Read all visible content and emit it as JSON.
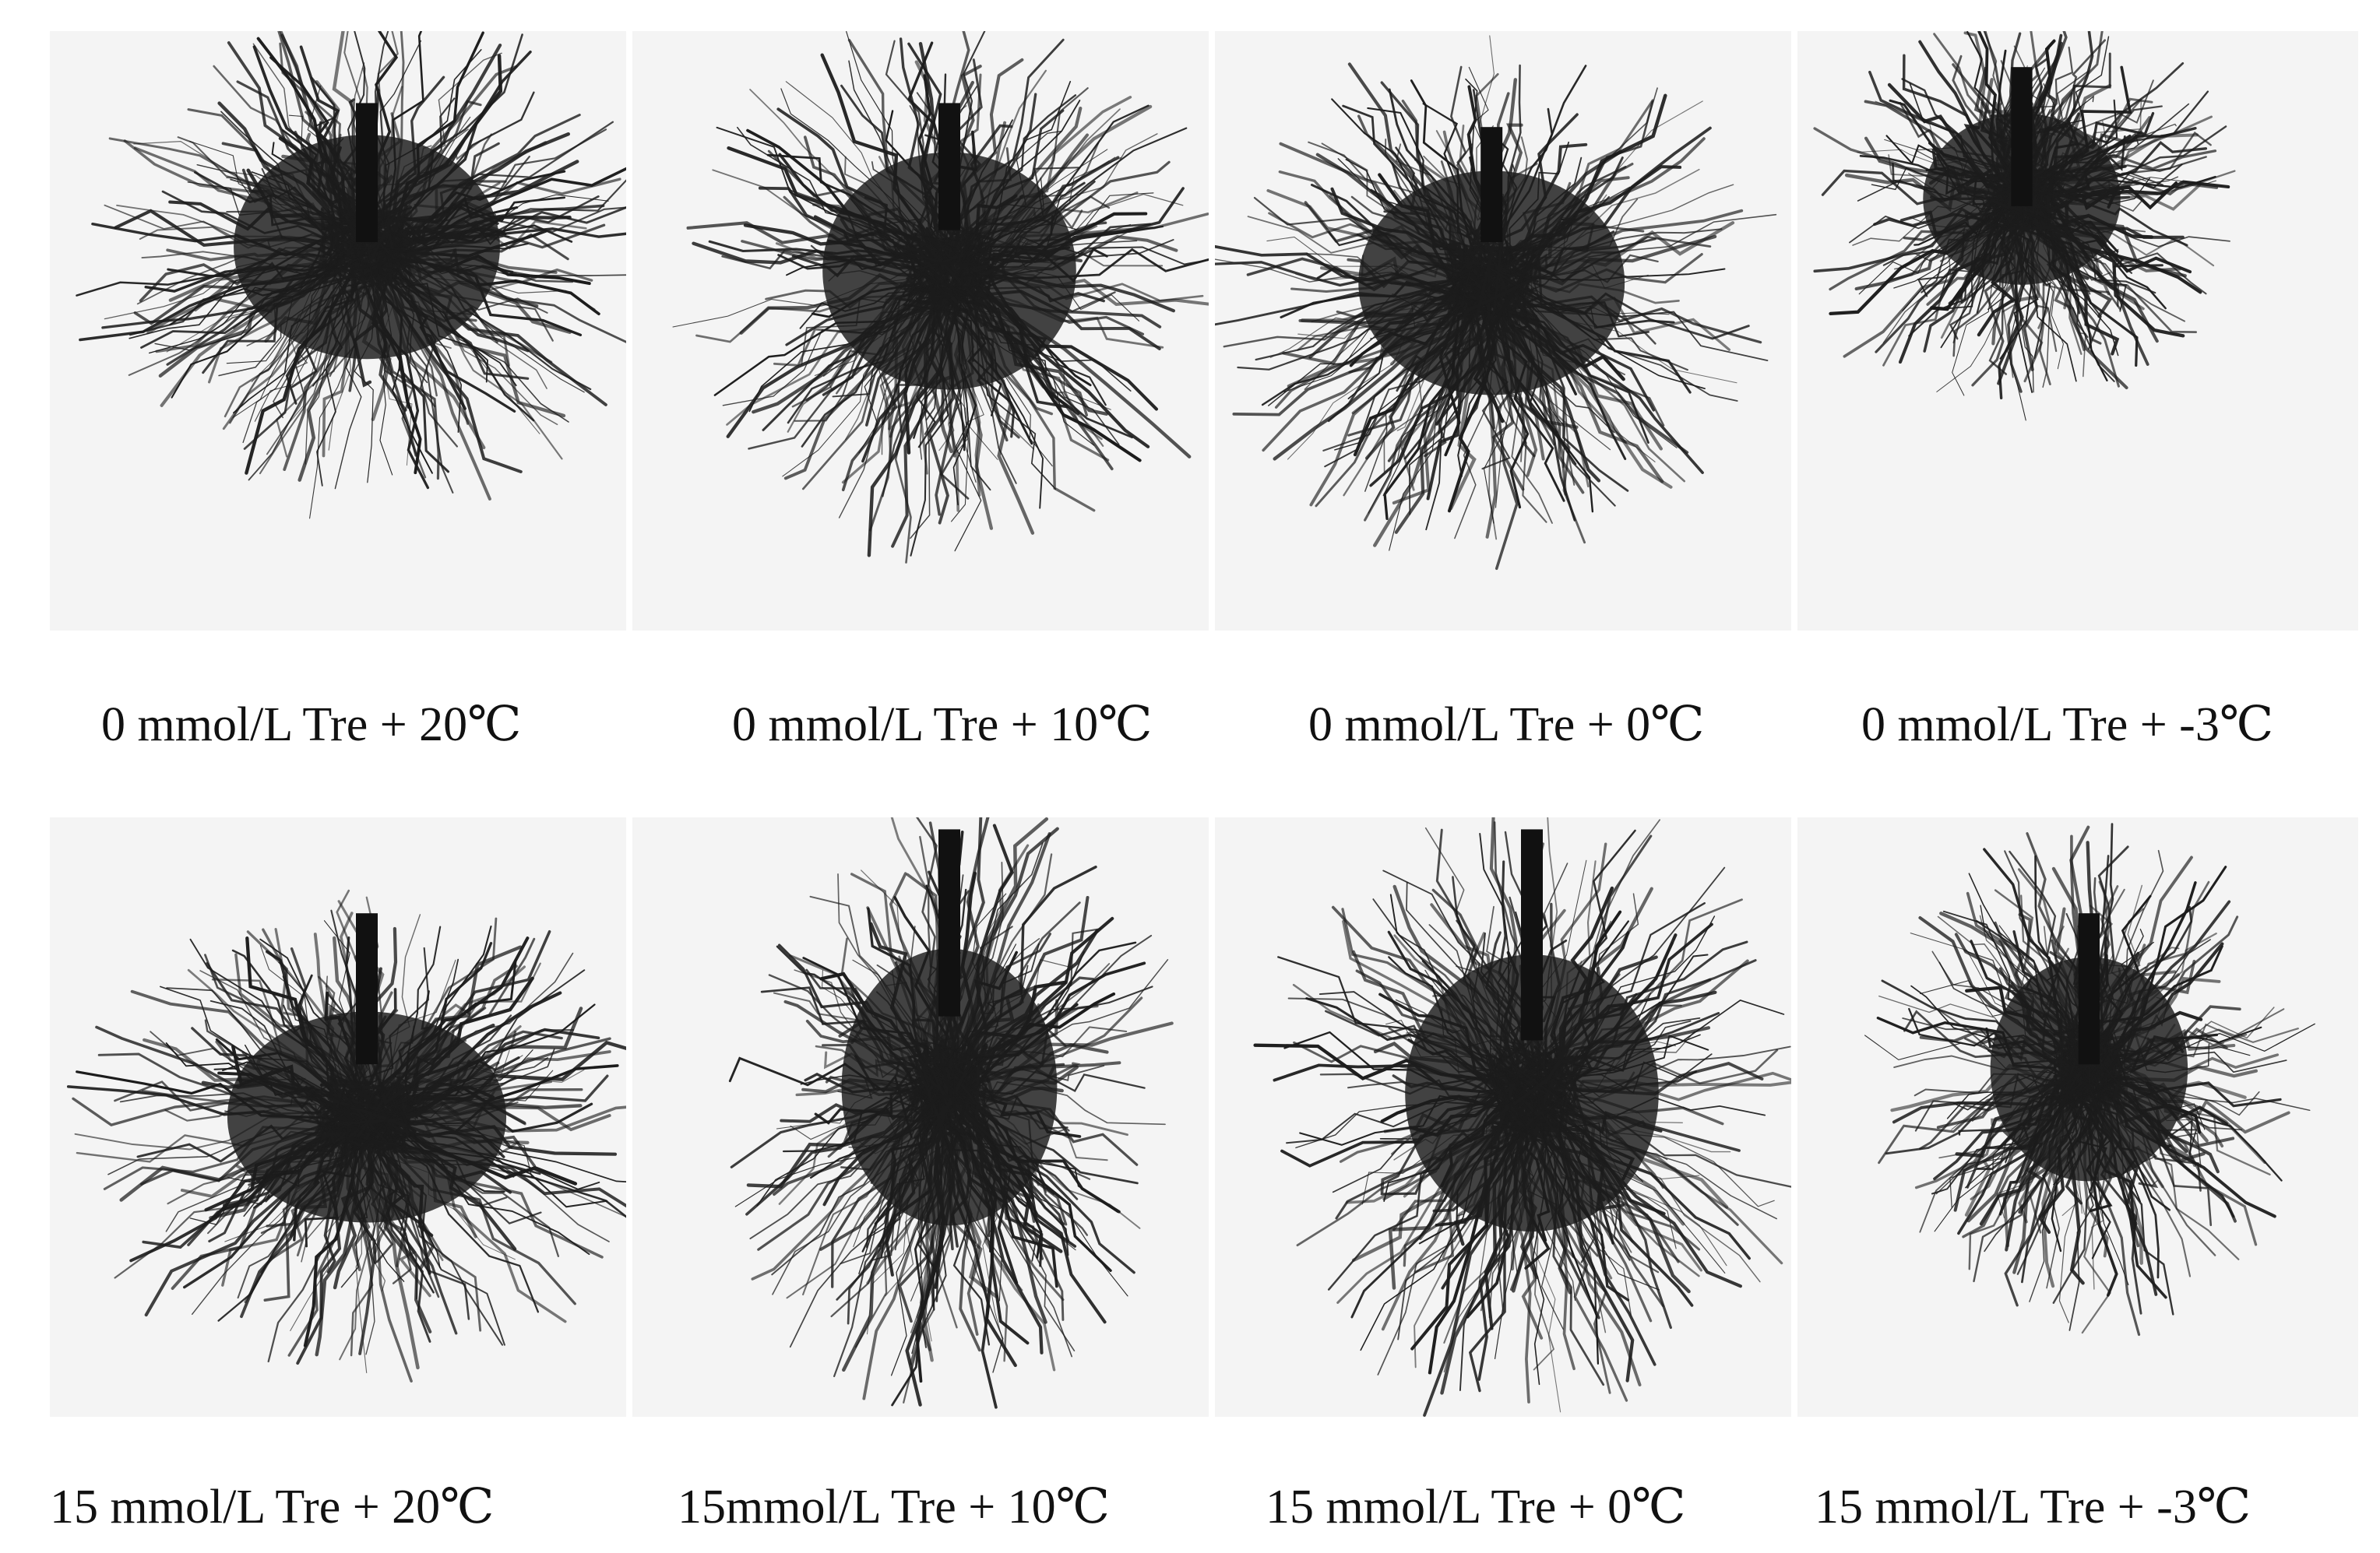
{
  "panels": [
    {
      "caption": "0 mmol/L Tre + 20℃",
      "image": "root-system-photo"
    },
    {
      "caption": "0 mmol/L Tre + 10℃",
      "image": "root-system-photo"
    },
    {
      "caption": "0 mmol/L Tre + 0℃",
      "image": "root-system-photo"
    },
    {
      "caption": "0 mmol/L Tre + -3℃",
      "image": "root-system-photo"
    },
    {
      "caption": "15 mmol/L Tre + 20℃",
      "image": "root-system-photo"
    },
    {
      "caption": "15mmol/L Tre + 10℃",
      "image": "root-system-photo"
    },
    {
      "caption": "15 mmol/L Tre + 0℃",
      "image": "root-system-photo"
    },
    {
      "caption": "15 mmol/L Tre + -3℃",
      "image": "root-system-photo"
    }
  ]
}
